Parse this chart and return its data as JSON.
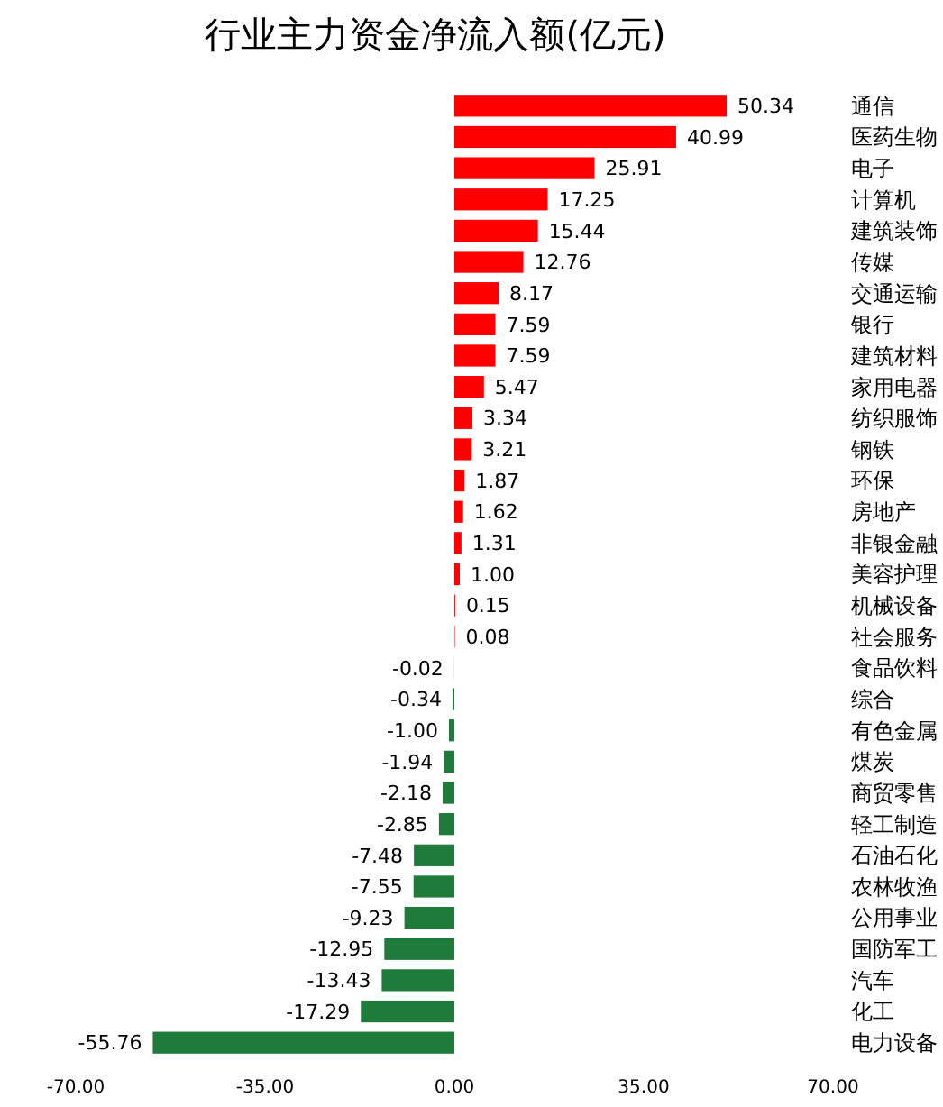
{
  "chart_data": {
    "type": "bar",
    "orientation": "horizontal",
    "title": "行业主力资金净流入额(亿元)",
    "categories": [
      "通信",
      "医药生物",
      "电子",
      "计算机",
      "建筑装饰",
      "传媒",
      "交通运输",
      "银行",
      "建筑材料",
      "家用电器",
      "纺织服饰",
      "钢铁",
      "环保",
      "房地产",
      "非银金融",
      "美容护理",
      "机械设备",
      "社会服务",
      "食品饮料",
      "综合",
      "有色金属",
      "煤炭",
      "商贸零售",
      "轻工制造",
      "石油石化",
      "农林牧渔",
      "公用事业",
      "国防军工",
      "汽车",
      "化工",
      "电力设备"
    ],
    "values": [
      50.34,
      40.99,
      25.91,
      17.25,
      15.44,
      12.76,
      8.17,
      7.59,
      7.59,
      5.47,
      3.34,
      3.21,
      1.87,
      1.62,
      1.31,
      1.0,
      0.15,
      0.08,
      -0.02,
      -0.34,
      -1.0,
      -1.94,
      -2.18,
      -2.85,
      -7.48,
      -7.55,
      -9.23,
      -12.95,
      -13.43,
      -17.29,
      -55.76
    ],
    "value_labels": [
      "50.34",
      "40.99",
      "25.91",
      "17.25",
      "15.44",
      "12.76",
      "8.17",
      "7.59",
      "7.59",
      "5.47",
      "3.34",
      "3.21",
      "1.87",
      "1.62",
      "1.31",
      "1.00",
      "0.15",
      "0.08",
      "-0.02",
      "-0.34",
      "-1.00",
      "-1.94",
      "-2.18",
      "-2.85",
      "-7.48",
      "-7.55",
      "-9.23",
      "-12.95",
      "-13.43",
      "-17.29",
      "-55.76"
    ],
    "colors": [
      "#ff0000",
      "#ff0000",
      "#ff0000",
      "#ff0000",
      "#ff0000",
      "#ff0000",
      "#ff0000",
      "#ff0000",
      "#ff0000",
      "#ff0000",
      "#ff0000",
      "#ff0000",
      "#ff0000",
      "#ff0000",
      "#ff0000",
      "#ff0000",
      "#ff0000",
      "#ff0000",
      "#1e7b3a",
      "#1e7b3a",
      "#1e7b3a",
      "#1e7b3a",
      "#1e7b3a",
      "#1e7b3a",
      "#1e7b3a",
      "#1e7b3a",
      "#1e7b3a",
      "#1e7b3a",
      "#1e7b3a",
      "#1e7b3a",
      "#1e7b3a"
    ],
    "xlim": [
      -70,
      70
    ],
    "xticks": [
      {
        "value": -70,
        "label": "-70.00"
      },
      {
        "value": -35,
        "label": "-35.00"
      },
      {
        "value": 0,
        "label": "0.00"
      },
      {
        "value": 35,
        "label": "35.00"
      },
      {
        "value": 70,
        "label": "70.00"
      }
    ],
    "grid": false
  }
}
